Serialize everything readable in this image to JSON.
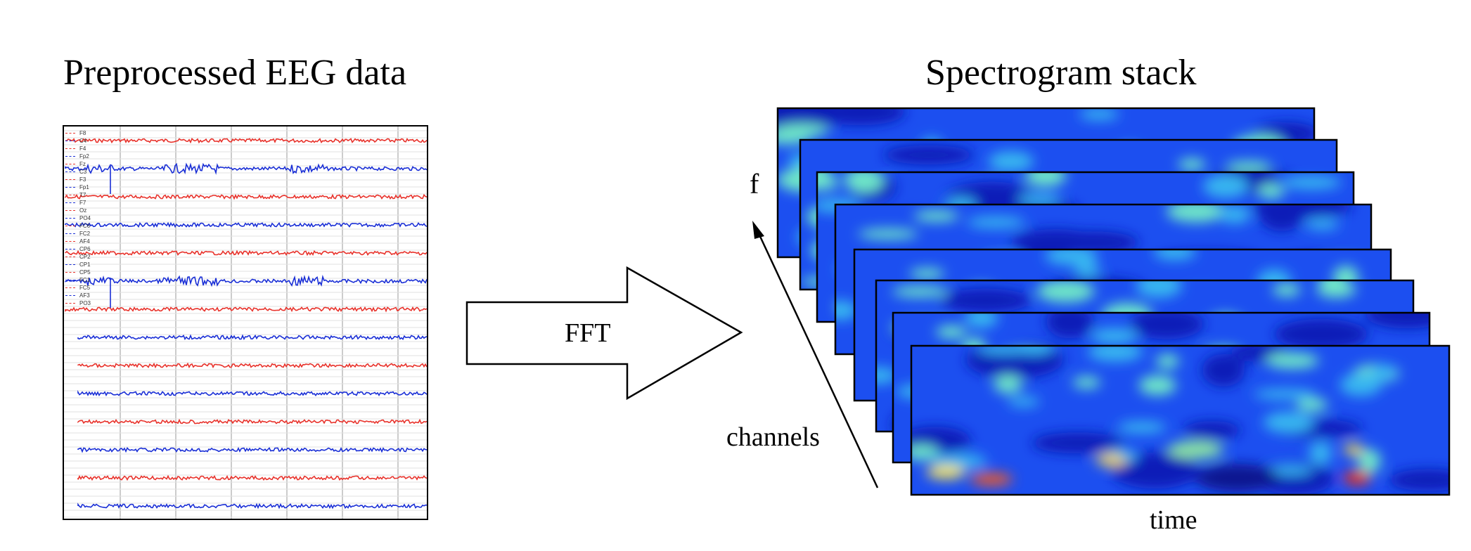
{
  "left_title": "Preprocessed EEG data",
  "right_title": "Spectrogram stack",
  "arrow_label": "FFT",
  "axis_f_label": "f",
  "axis_channels_label": "channels",
  "axis_time_label": "time",
  "channel_labels": [
    "F8",
    "C4",
    "F4",
    "Fp2",
    "Fz",
    "C3",
    "F3",
    "Fp1",
    "T7",
    "F7",
    "Oz",
    "PO4",
    "FC6",
    "FC2",
    "AF4",
    "CP6",
    "CP2",
    "CP1",
    "CP5",
    "FC1",
    "FC5",
    "AF3",
    "PO3"
  ],
  "colors": {
    "trace_red": "#e8322b",
    "trace_blue": "#1a2fd6",
    "grid": "#bbbbbb"
  }
}
